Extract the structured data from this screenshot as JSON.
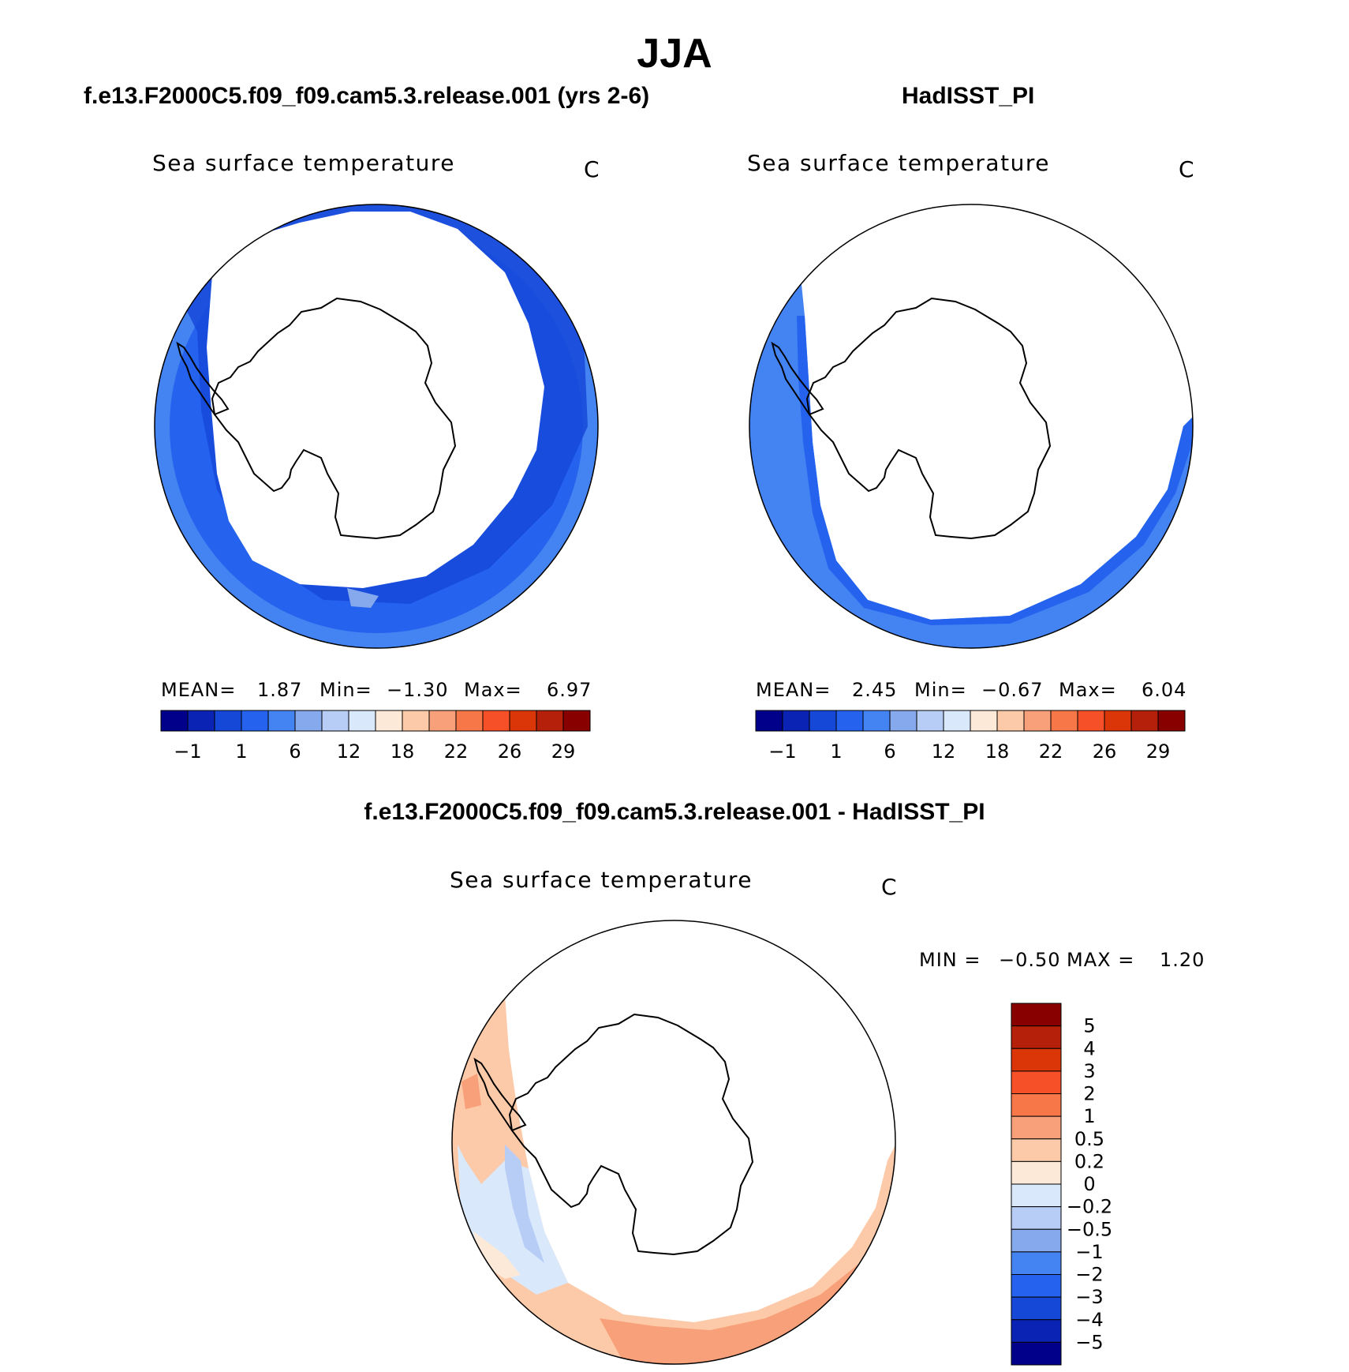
{
  "figure": {
    "title": "JJA",
    "colors": {
      "land_mask": "#ffffff",
      "coastline": "#000000"
    }
  },
  "panels": [
    {
      "id": "model",
      "header": "f.e13.F2000C5.f09_f09.cam5.3.release.001 (yrs 2-6)",
      "variable": "Sea surface temperature",
      "units": "C",
      "stats": {
        "mean_label": "MEAN=",
        "mean": "1.87",
        "min_label": "Min=",
        "min": "−1.30",
        "max_label": "Max=",
        "max": "6.97"
      }
    },
    {
      "id": "obs",
      "header": "HadISST_PI",
      "variable": "Sea surface temperature",
      "units": "C",
      "stats": {
        "mean_label": "MEAN=",
        "mean": "2.45",
        "min_label": "Min=",
        "min": "−0.67",
        "max_label": "Max=",
        "max": "6.04"
      }
    },
    {
      "id": "difference",
      "header": "f.e13.F2000C5.f09_f09.cam5.3.release.001 - HadISST_PI",
      "variable": "Sea surface temperature",
      "units": "C",
      "stats": {
        "min_label": "MIN =",
        "min": "−0.50",
        "max_label": "MAX =",
        "max": "1.20"
      }
    }
  ],
  "colorbar_abs": {
    "orientation": "horizontal",
    "colors": [
      "#00008b",
      "#0a23b4",
      "#1648d8",
      "#2563ee",
      "#4383f2",
      "#86a9ee",
      "#b7cdf6",
      "#d9e9fb",
      "#fde9d8",
      "#fccaa8",
      "#f8a079",
      "#f77748",
      "#f65028",
      "#db3608",
      "#b5200a",
      "#880000"
    ],
    "tick_labels": [
      "−1",
      "1",
      "6",
      "12",
      "18",
      "22",
      "26",
      "29"
    ]
  },
  "colorbar_diff": {
    "orientation": "vertical",
    "colors_top_to_bottom": [
      "#880000",
      "#b5200a",
      "#db3608",
      "#f65028",
      "#f77748",
      "#f8a079",
      "#fccaa8",
      "#fde9d8",
      "#d9e9fb",
      "#b7cdf6",
      "#86a9ee",
      "#4383f2",
      "#2563ee",
      "#1648d8",
      "#0a23b4",
      "#00008b"
    ],
    "tick_labels_top_to_bottom": [
      "5",
      "4",
      "3",
      "2",
      "1",
      "0.5",
      "0.2",
      "0",
      "−0.2",
      "−0.5",
      "−1",
      "−2",
      "−3",
      "−4",
      "−5"
    ]
  }
}
